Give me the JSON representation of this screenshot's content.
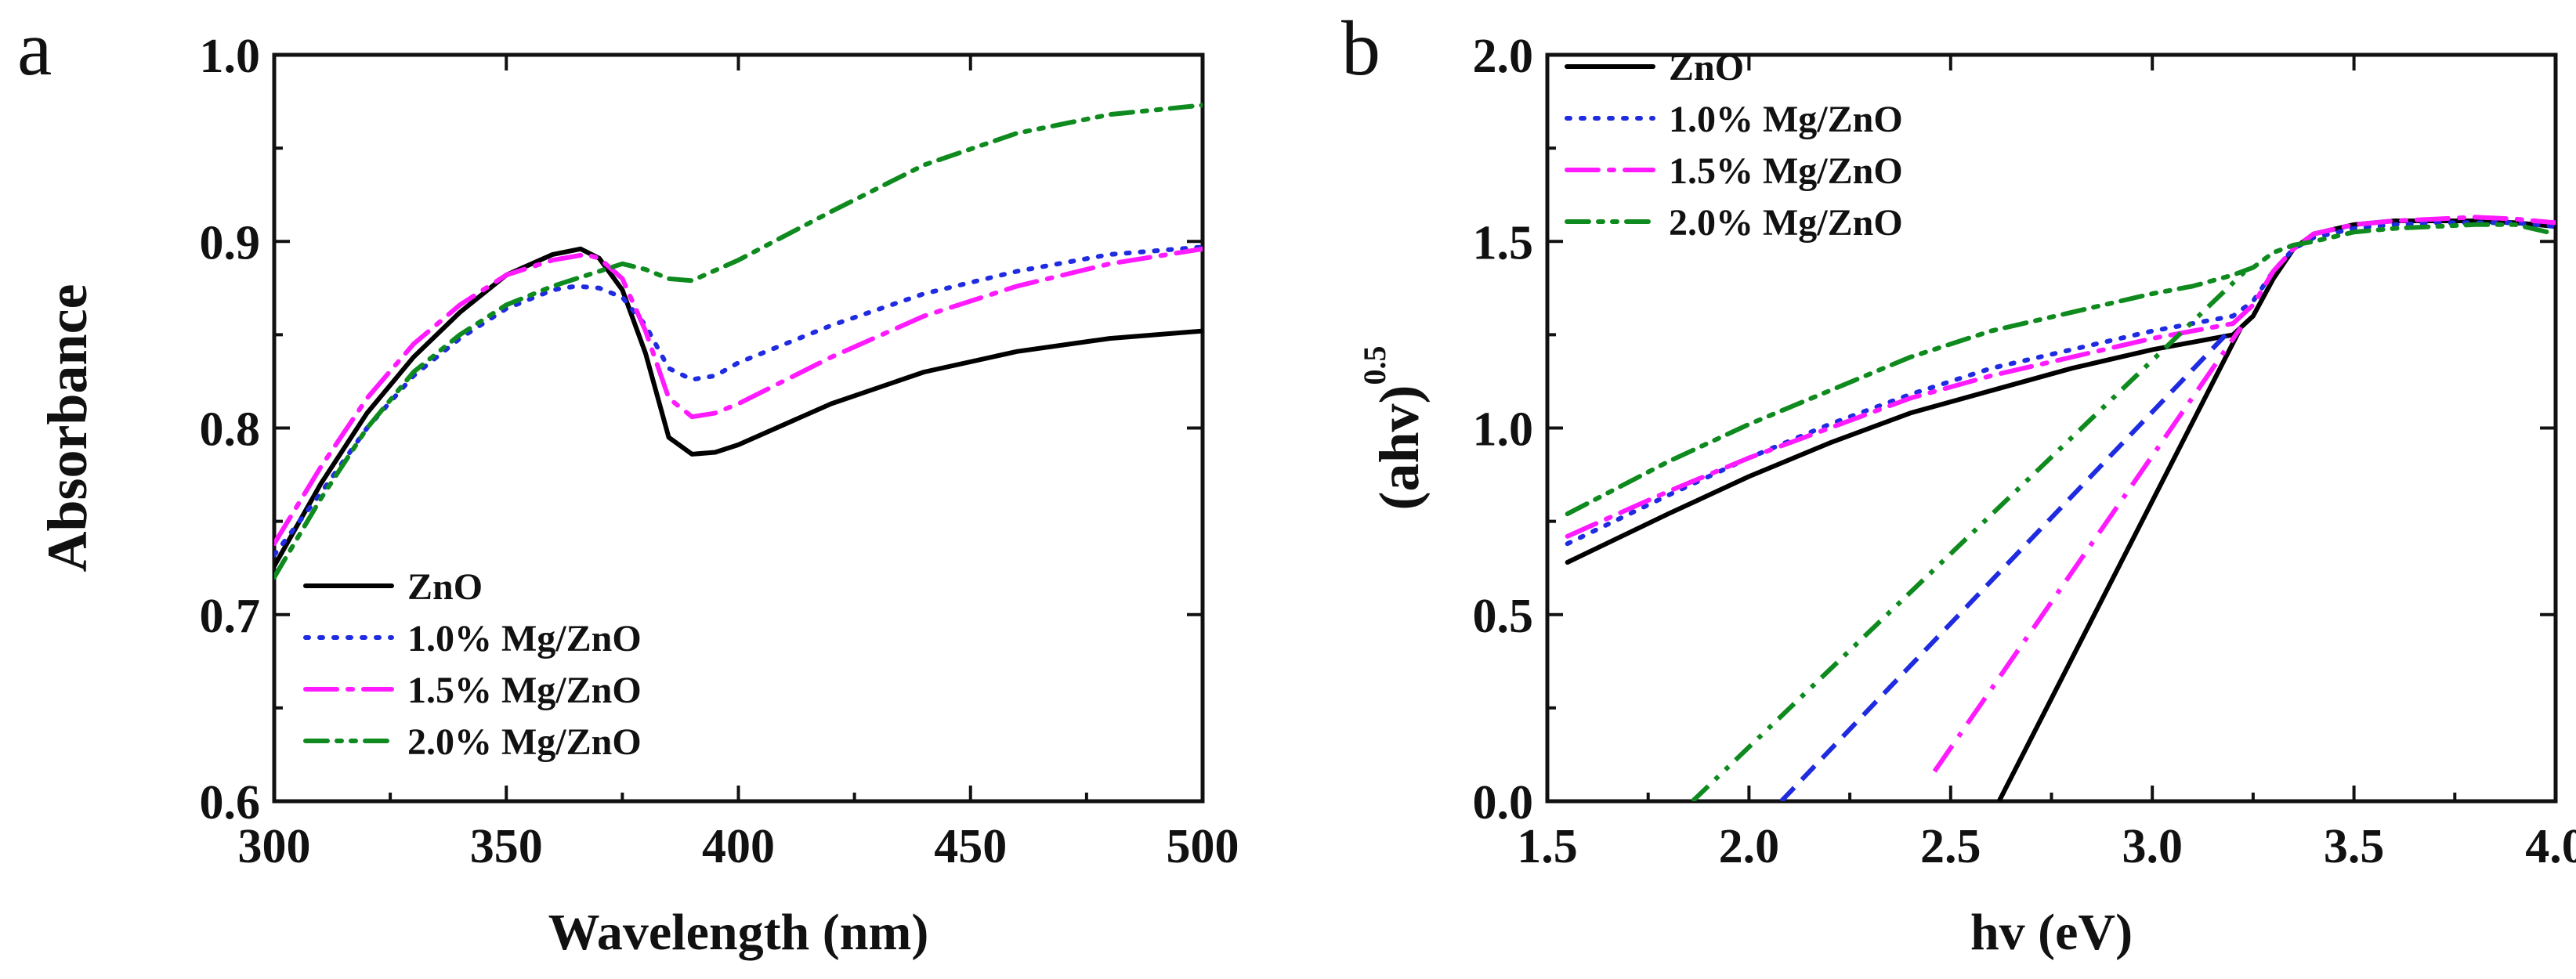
{
  "chart_data": [
    {
      "type": "line",
      "panel_label": "a",
      "title": "",
      "xlabel": "Wavelength (nm)",
      "ylabel": "Absorbance",
      "xlim": [
        300,
        500
      ],
      "ylim": [
        0.6,
        1.0
      ],
      "xticks": [
        300,
        350,
        400,
        450,
        500
      ],
      "yticks": [
        0.6,
        0.7,
        0.8,
        0.9,
        1.0
      ],
      "xtick_labels": [
        "300",
        "350",
        "400",
        "450",
        "500"
      ],
      "ytick_labels": [
        "0.6",
        "0.7",
        "0.8",
        "0.9",
        "1.0"
      ],
      "legend_position": "bottom-left",
      "series": [
        {
          "name": "ZnO",
          "color": "#000000",
          "dash": "solid",
          "x": [
            300,
            310,
            320,
            330,
            340,
            350,
            360,
            366,
            370,
            375,
            380,
            385,
            390,
            395,
            400,
            420,
            440,
            460,
            480,
            500
          ],
          "y": [
            0.726,
            0.77,
            0.808,
            0.838,
            0.862,
            0.882,
            0.893,
            0.896,
            0.891,
            0.874,
            0.84,
            0.795,
            0.786,
            0.787,
            0.791,
            0.813,
            0.83,
            0.841,
            0.848,
            0.852
          ]
        },
        {
          "name": "1.0% Mg/ZnO",
          "color": "#1f2be0",
          "dash": "dot",
          "x": [
            300,
            310,
            320,
            330,
            340,
            350,
            360,
            365,
            370,
            375,
            380,
            385,
            390,
            395,
            400,
            420,
            440,
            460,
            480,
            500
          ],
          "y": [
            0.732,
            0.765,
            0.8,
            0.828,
            0.848,
            0.864,
            0.874,
            0.876,
            0.875,
            0.87,
            0.855,
            0.832,
            0.826,
            0.828,
            0.835,
            0.855,
            0.872,
            0.884,
            0.893,
            0.897
          ]
        },
        {
          "name": "1.5% Mg/ZnO",
          "color": "#ff1aff",
          "dash": "dashdot",
          "x": [
            300,
            310,
            320,
            330,
            340,
            350,
            360,
            367,
            370,
            375,
            380,
            385,
            390,
            395,
            400,
            420,
            440,
            460,
            480,
            500
          ],
          "y": [
            0.738,
            0.779,
            0.816,
            0.845,
            0.866,
            0.882,
            0.89,
            0.893,
            0.891,
            0.88,
            0.852,
            0.816,
            0.806,
            0.808,
            0.813,
            0.838,
            0.86,
            0.876,
            0.888,
            0.896
          ]
        },
        {
          "name": "2.0% Mg/ZnO",
          "color": "#0e8a1e",
          "dash": "dashdotdot",
          "x": [
            300,
            310,
            320,
            330,
            340,
            350,
            360,
            370,
            375,
            380,
            385,
            390,
            400,
            420,
            440,
            460,
            480,
            500
          ],
          "y": [
            0.72,
            0.762,
            0.8,
            0.83,
            0.85,
            0.866,
            0.876,
            0.884,
            0.888,
            0.885,
            0.88,
            0.879,
            0.89,
            0.916,
            0.941,
            0.958,
            0.968,
            0.973
          ]
        }
      ]
    },
    {
      "type": "line",
      "panel_label": "b",
      "title": "",
      "xlabel": "hv (eV)",
      "ylabel": "(ahv)",
      "ylabel_superscript": "0.5",
      "xlim": [
        1.5,
        4.0
      ],
      "ylim": [
        0.0,
        2.0
      ],
      "xticks": [
        1.5,
        2.0,
        2.5,
        3.0,
        3.5,
        4.0
      ],
      "yticks": [
        0.0,
        0.5,
        1.0,
        1.5,
        2.0
      ],
      "xtick_labels": [
        "1.5",
        "2.0",
        "2.5",
        "3.0",
        "3.5",
        "4.0"
      ],
      "ytick_labels": [
        "0.0",
        "0.5",
        "1.0",
        "1.5",
        "2.0"
      ],
      "legend_position": "top-left",
      "series": [
        {
          "name": "ZnO",
          "color": "#000000",
          "dash": "solid",
          "x": [
            1.55,
            1.8,
            2.0,
            2.2,
            2.4,
            2.6,
            2.8,
            3.0,
            3.1,
            3.2,
            3.25,
            3.3,
            3.35,
            3.4,
            3.5,
            3.6,
            3.7,
            3.8,
            3.9,
            4.0
          ],
          "y": [
            0.64,
            0.77,
            0.87,
            0.96,
            1.04,
            1.1,
            1.16,
            1.21,
            1.23,
            1.25,
            1.3,
            1.4,
            1.48,
            1.52,
            1.545,
            1.555,
            1.555,
            1.555,
            1.55,
            1.54
          ],
          "tangent": {
            "x": [
              2.62,
              3.22
            ],
            "y": [
              0.0,
              1.27
            ]
          }
        },
        {
          "name": "1.0% Mg/ZnO",
          "color": "#1f2be0",
          "dash": "dot",
          "x": [
            1.55,
            1.8,
            2.0,
            2.2,
            2.4,
            2.6,
            2.8,
            3.0,
            3.1,
            3.2,
            3.25,
            3.3,
            3.35,
            3.4,
            3.5,
            3.6,
            3.7,
            3.8,
            3.9,
            4.0
          ],
          "y": [
            0.69,
            0.82,
            0.92,
            1.01,
            1.09,
            1.16,
            1.21,
            1.26,
            1.28,
            1.3,
            1.34,
            1.42,
            1.48,
            1.51,
            1.535,
            1.545,
            1.55,
            1.55,
            1.55,
            1.54
          ],
          "tangent": {
            "x": [
              2.08,
              3.2
            ],
            "y": [
              0.0,
              1.27
            ]
          }
        },
        {
          "name": "1.5% Mg/ZnO",
          "color": "#ff1aff",
          "dash": "dashdot",
          "x": [
            1.55,
            1.8,
            2.0,
            2.2,
            2.4,
            2.6,
            2.8,
            3.0,
            3.1,
            3.2,
            3.25,
            3.3,
            3.35,
            3.4,
            3.5,
            3.6,
            3.7,
            3.8,
            3.9,
            4.0
          ],
          "y": [
            0.71,
            0.83,
            0.92,
            1.0,
            1.08,
            1.14,
            1.19,
            1.24,
            1.26,
            1.28,
            1.33,
            1.42,
            1.48,
            1.52,
            1.545,
            1.555,
            1.56,
            1.565,
            1.56,
            1.55
          ],
          "tangent": {
            "x": [
              2.46,
              3.22
            ],
            "y": [
              0.08,
              1.27
            ]
          }
        },
        {
          "name": "2.0% Mg/ZnO",
          "color": "#0e8a1e",
          "dash": "dashdotdot",
          "x": [
            1.55,
            1.8,
            2.0,
            2.2,
            2.4,
            2.6,
            2.8,
            3.0,
            3.1,
            3.2,
            3.25,
            3.3,
            3.35,
            3.4,
            3.5,
            3.6,
            3.7,
            3.8,
            3.9,
            4.0
          ],
          "y": [
            0.77,
            0.91,
            1.01,
            1.1,
            1.19,
            1.26,
            1.31,
            1.36,
            1.38,
            1.41,
            1.43,
            1.47,
            1.49,
            1.5,
            1.525,
            1.535,
            1.54,
            1.545,
            1.545,
            1.52
          ],
          "tangent": {
            "x": [
              1.86,
              3.24
            ],
            "y": [
              0.0,
              1.43
            ]
          }
        }
      ]
    }
  ]
}
